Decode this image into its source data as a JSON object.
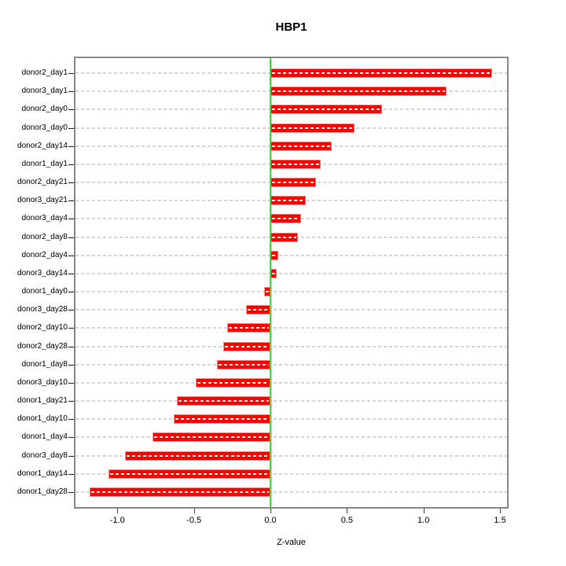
{
  "title": "HBP1",
  "chart_data": {
    "type": "bar",
    "orientation": "horizontal",
    "title": "HBP1",
    "xlabel": "Z-value",
    "ylabel": "",
    "xlim": [
      -1.28,
      1.56
    ],
    "grid": "dashed horizontal line per category row",
    "legend": "none",
    "categories": [
      "donor2_day1",
      "donor3_day1",
      "donor2_day0",
      "donor3_day0",
      "donor2_day14",
      "donor1_day1",
      "donor2_day21",
      "donor3_day21",
      "donor3_day4",
      "donor2_day8",
      "donor2_day4",
      "donor3_day14",
      "donor1_day0",
      "donor3_day28",
      "donor2_day10",
      "donor2_day28",
      "donor1_day8",
      "donor3_day10",
      "donor1_day21",
      "donor1_day10",
      "donor1_day4",
      "donor3_day8",
      "donor1_day14",
      "donor1_day28"
    ],
    "values": [
      1.45,
      1.15,
      0.73,
      0.55,
      0.4,
      0.33,
      0.3,
      0.23,
      0.2,
      0.18,
      0.05,
      0.04,
      -0.04,
      -0.16,
      -0.28,
      -0.31,
      -0.35,
      -0.49,
      -0.61,
      -0.63,
      -0.77,
      -0.95,
      -1.06,
      -1.18
    ],
    "x_tick_labels": [
      "-1.0",
      "-0.5",
      "0.0",
      "0.5",
      "1.0",
      "1.5"
    ],
    "x_tick_values": [
      -1.0,
      -0.5,
      0.0,
      0.5,
      1.0,
      1.5
    ],
    "colors": {
      "bar": "#ff0000",
      "bar_inner_dash": "#ffffff",
      "zero_line": "#21f021",
      "gridline": "#d6d6d6",
      "box_border": "#8a8a8a",
      "text": "#000000"
    }
  }
}
